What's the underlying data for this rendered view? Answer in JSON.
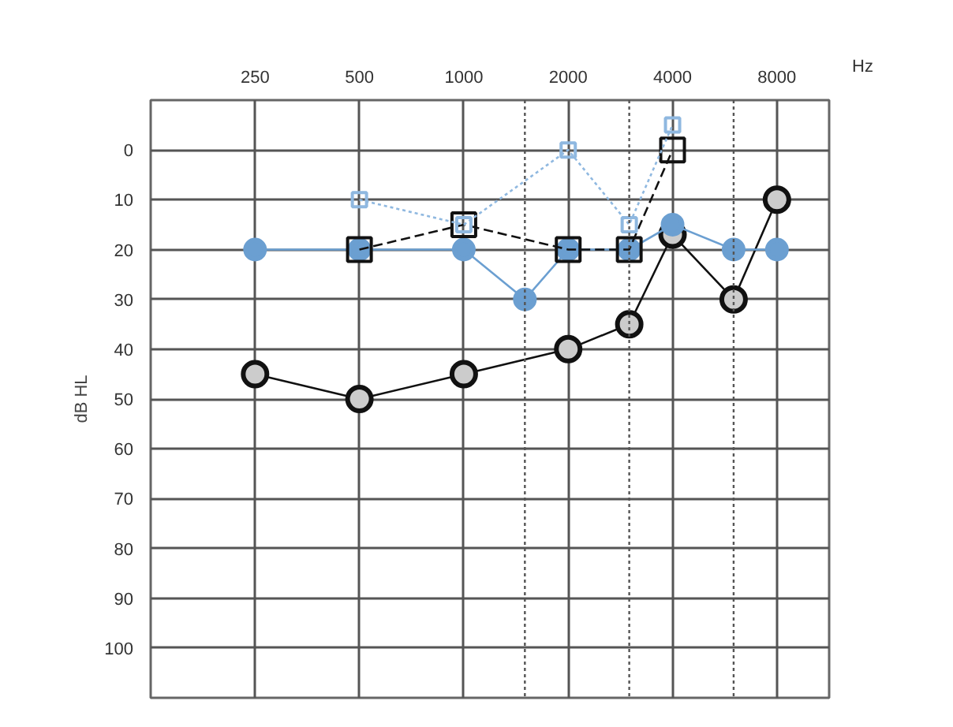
{
  "chart_data": {
    "type": "line",
    "xlabel": "Hz",
    "ylabel": "dB HL",
    "xlim": [
      125,
      11314
    ],
    "xticks": [
      250,
      500,
      1000,
      2000,
      4000,
      8000
    ],
    "ylim": [
      110,
      -10
    ],
    "yticks": [
      0,
      10,
      20,
      30,
      40,
      50,
      60,
      70,
      80,
      90,
      100
    ],
    "log": "x",
    "grid": true,
    "series": [
      {
        "color": "#111111",
        "marker": "circle",
        "line_style": "solid",
        "x": [
          250,
          500,
          1000,
          2000,
          3000,
          4000,
          6000,
          8000
        ],
        "values": [
          45,
          50,
          45,
          40,
          35,
          17,
          30,
          10
        ]
      },
      {
        "color": "#6b9fd1",
        "marker": "circle",
        "line_style": "solid",
        "x": [
          250,
          500,
          1000,
          1500,
          2000,
          3000,
          4000,
          6000,
          8000
        ],
        "values": [
          20,
          20,
          20,
          30,
          20,
          20,
          15,
          20,
          20
        ]
      },
      {
        "color": "#111111",
        "marker": "square",
        "line_style": "dashed",
        "x": [
          500,
          1000,
          2000,
          3000,
          4000
        ],
        "values": [
          20,
          15,
          20,
          20,
          0
        ]
      },
      {
        "color": "#8fb8e0",
        "marker": "square",
        "line_style": "dotted",
        "x": [
          500,
          1000,
          2000,
          3000,
          4000
        ],
        "values": [
          10,
          15,
          0,
          15,
          -5
        ]
      }
    ],
    "ref_lines": [
      {
        "axis": "x",
        "value": 1500,
        "line_style": "dotted"
      },
      {
        "axis": "x",
        "value": 3000,
        "line_style": "dotted"
      },
      {
        "axis": "x",
        "value": 6000,
        "line_style": "dotted"
      }
    ]
  }
}
